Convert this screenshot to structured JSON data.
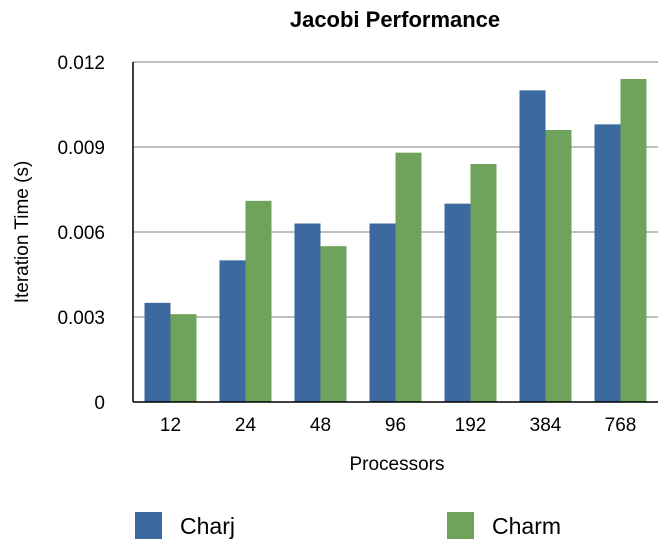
{
  "chart_data": {
    "type": "bar",
    "title": "Jacobi Performance",
    "xlabel": "Processors",
    "ylabel": "Iteration Time (s)",
    "categories": [
      "12",
      "24",
      "48",
      "96",
      "192",
      "384",
      "768"
    ],
    "series": [
      {
        "name": "Charj",
        "color": "#3d6a9e",
        "values": [
          0.0035,
          0.005,
          0.0063,
          0.0063,
          0.007,
          0.011,
          0.0098
        ]
      },
      {
        "name": "Charm",
        "color": "#6fa35b",
        "values": [
          0.0031,
          0.0071,
          0.0055,
          0.0088,
          0.0084,
          0.0096,
          0.0114
        ]
      }
    ],
    "ylim": [
      0,
      0.012
    ],
    "yticks": [
      0,
      0.003,
      0.006,
      0.009,
      0.012
    ],
    "ytick_labels": [
      "0",
      "0.003",
      "0.006",
      "0.009",
      "0.012"
    ],
    "grid": true,
    "legend": "bottom"
  }
}
